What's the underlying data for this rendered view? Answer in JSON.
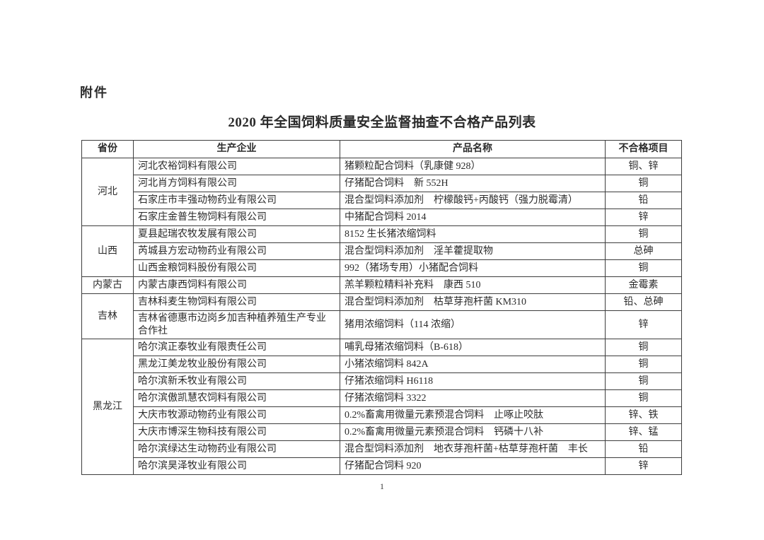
{
  "page": {
    "attachment_label": "附件",
    "title": "2020 年全国饲料质量安全监督抽查不合格产品列表",
    "page_number": "1"
  },
  "table": {
    "headers": [
      "省份",
      "生产企业",
      "产品名称",
      "不合格项目"
    ],
    "groups": [
      {
        "province": "河北",
        "rows": [
          {
            "company": "河北农裕饲料有限公司",
            "product": "猪颗粒配合饲料（乳康健 928）",
            "items": "铜、锌"
          },
          {
            "company": "河北肖方饲料有限公司",
            "product": "仔猪配合饲料　新 552H",
            "items": "铜"
          },
          {
            "company": "石家庄市丰强动物药业有限公司",
            "product": "混合型饲料添加剂　柠檬酸钙+丙酸钙（强力脱霉清）",
            "items": "铅"
          },
          {
            "company": "石家庄金普生物饲料有限公司",
            "product": "中猪配合饲料 2014",
            "items": "锌"
          }
        ]
      },
      {
        "province": "山西",
        "rows": [
          {
            "company": "夏县起瑞农牧发展有限公司",
            "product": "8152 生长猪浓缩饲料",
            "items": "铜"
          },
          {
            "company": "芮城县方宏动物药业有限公司",
            "product": "混合型饲料添加剂　淫羊藿提取物",
            "items": "总砷"
          },
          {
            "company": "山西金粮饲料股份有限公司",
            "product": "992（猪场专用）小猪配合饲料",
            "items": "铜"
          }
        ]
      },
      {
        "province": "内蒙古",
        "rows": [
          {
            "company": "内蒙古康西饲料有限公司",
            "product": "羔羊颗粒精料补充料　康西 510",
            "items": "金霉素"
          }
        ]
      },
      {
        "province": "吉林",
        "rows": [
          {
            "company": "吉林科麦生物饲料有限公司",
            "product": "混合型饲料添加剂　枯草芽孢杆菌 KM310",
            "items": "铅、总砷"
          },
          {
            "company": "吉林省德惠市边岗乡加吉种植养殖生产专业合作社",
            "product": "猪用浓缩饲料（114 浓缩）",
            "items": "锌"
          }
        ]
      },
      {
        "province": "黑龙江",
        "rows": [
          {
            "company": "哈尔滨正泰牧业有限责任公司",
            "product": "哺乳母猪浓缩饲料（B-618）",
            "items": "铜"
          },
          {
            "company": "黑龙江美龙牧业股份有限公司",
            "product": "小猪浓缩饲料 842A",
            "items": "铜"
          },
          {
            "company": "哈尔滨新禾牧业有限公司",
            "product": "仔猪浓缩饲料 H6118",
            "items": "铜"
          },
          {
            "company": "哈尔滨傲凯慧农饲料有限公司",
            "product": "仔猪浓缩饲料 3322",
            "items": "铜"
          },
          {
            "company": "大庆市牧源动物药业有限公司",
            "product": "0.2%畜禽用微量元素预混合饲料　止啄止咬肽",
            "items": "锌、铁"
          },
          {
            "company": "大庆市博深生物科技有限公司",
            "product": "0.2%畜禽用微量元素预混合饲料　钙磷十八补",
            "items": "锌、锰"
          },
          {
            "company": "哈尔滨绿达生动物药业有限公司",
            "product": "混合型饲料添加剂　地衣芽孢杆菌+枯草芽孢杆菌　丰长",
            "items": "铅"
          },
          {
            "company": "哈尔滨昊泽牧业有限公司",
            "product": "仔猪配合饲料 920",
            "items": "锌"
          }
        ]
      }
    ]
  }
}
